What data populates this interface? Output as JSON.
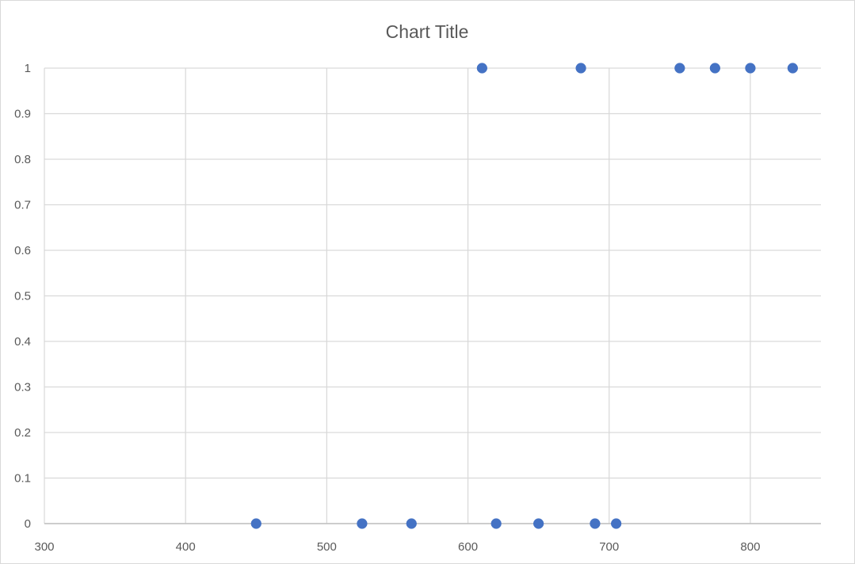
{
  "chart_data": {
    "type": "scatter",
    "title": "Chart Title",
    "xlabel": "",
    "ylabel": "",
    "xlim": [
      300,
      850
    ],
    "ylim": [
      0,
      1
    ],
    "x_ticks": [
      300,
      400,
      500,
      600,
      700,
      800
    ],
    "y_ticks": [
      0,
      0.1,
      0.2,
      0.3,
      0.4,
      0.5,
      0.6,
      0.7,
      0.8,
      0.9,
      1
    ],
    "x_tick_labels": [
      "300",
      "400",
      "500",
      "600",
      "700",
      "800"
    ],
    "y_tick_labels": [
      "0",
      "0.1",
      "0.2",
      "0.3",
      "0.4",
      "0.5",
      "0.6",
      "0.7",
      "0.8",
      "0.9",
      "1"
    ],
    "grid": true,
    "legend": "none",
    "series": [
      {
        "color": "#4472c4",
        "points": [
          {
            "x": 450,
            "y": 0
          },
          {
            "x": 525,
            "y": 0
          },
          {
            "x": 560,
            "y": 0
          },
          {
            "x": 610,
            "y": 1
          },
          {
            "x": 620,
            "y": 0
          },
          {
            "x": 650,
            "y": 0
          },
          {
            "x": 680,
            "y": 1
          },
          {
            "x": 690,
            "y": 0
          },
          {
            "x": 705,
            "y": 0
          },
          {
            "x": 750,
            "y": 1
          },
          {
            "x": 775,
            "y": 1
          },
          {
            "x": 800,
            "y": 1
          },
          {
            "x": 830,
            "y": 1
          }
        ]
      }
    ],
    "colors": {
      "grid": "#d9d9d9",
      "axis": "#bfbfbf",
      "text": "#595959"
    }
  }
}
